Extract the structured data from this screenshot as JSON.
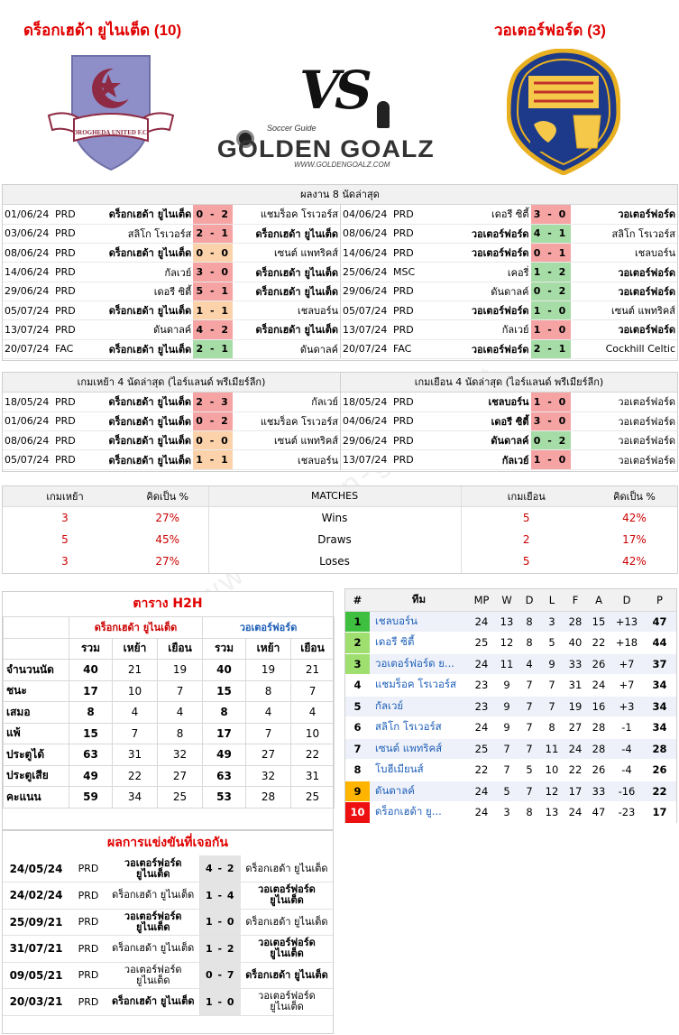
{
  "header": {
    "home_title": "ดร็อกเฮด้า ยูไนเต็ด (10)",
    "away_title": "วอเตอร์ฟอร์ด (3)",
    "vs": "VS",
    "logo_top": "Soccer Guide",
    "logo_main": "GOLDEN GOALZ",
    "logo_url": "WWW.GOLDENGOALZ.COM",
    "home_crest_text": "DROGHEDA UNITED F.C.",
    "watermark": "www.golden-goalz.net"
  },
  "last8": {
    "title": "ผลงาน 8 นัดล่าสุด",
    "home": [
      {
        "date": "01/06/24",
        "comp": "PRD",
        "team": "ดร็อกเฮด้า ยูไนเต็ด",
        "score": "0 - 2",
        "opp": "แชมร็อค โรเวอร์ส",
        "res": "l",
        "hb": true
      },
      {
        "date": "03/06/24",
        "comp": "PRD",
        "team": "สลิโก โรเวอร์ส",
        "score": "2 - 1",
        "opp": "ดร็อกเฮด้า ยูไนเต็ด",
        "res": "l",
        "hb": false
      },
      {
        "date": "08/06/24",
        "comp": "PRD",
        "team": "ดร็อกเฮด้า ยูไนเต็ด",
        "score": "0 - 0",
        "opp": "เซนต์ แพทริคส์",
        "res": "d",
        "hb": true
      },
      {
        "date": "14/06/24",
        "comp": "PRD",
        "team": "กัลเวย์",
        "score": "3 - 0",
        "opp": "ดร็อกเฮด้า ยูไนเต็ด",
        "res": "l",
        "hb": false
      },
      {
        "date": "29/06/24",
        "comp": "PRD",
        "team": "เดอรี ซิตี้",
        "score": "5 - 1",
        "opp": "ดร็อกเฮด้า ยูไนเต็ด",
        "res": "l",
        "hb": false
      },
      {
        "date": "05/07/24",
        "comp": "PRD",
        "team": "ดร็อกเฮด้า ยูไนเต็ด",
        "score": "1 - 1",
        "opp": "เชลบอร์น",
        "res": "d",
        "hb": true
      },
      {
        "date": "13/07/24",
        "comp": "PRD",
        "team": "ดันดาลค์",
        "score": "4 - 2",
        "opp": "ดร็อกเฮด้า ยูไนเต็ด",
        "res": "l",
        "hb": false
      },
      {
        "date": "20/07/24",
        "comp": "FAC",
        "team": "ดร็อกเฮด้า ยูไนเต็ด",
        "score": "2 - 1",
        "opp": "ดันดาลค์",
        "res": "w",
        "hb": true
      }
    ],
    "away": [
      {
        "date": "04/06/24",
        "comp": "PRD",
        "team": "เดอรี ซิตี้",
        "score": "3 - 0",
        "opp": "วอเตอร์ฟอร์ด",
        "res": "l",
        "hb": false
      },
      {
        "date": "08/06/24",
        "comp": "PRD",
        "team": "วอเตอร์ฟอร์ด",
        "score": "4 - 1",
        "opp": "สลิโก โรเวอร์ส",
        "res": "w",
        "hb": true
      },
      {
        "date": "14/06/24",
        "comp": "PRD",
        "team": "วอเตอร์ฟอร์ด",
        "score": "0 - 1",
        "opp": "เชลบอร์น",
        "res": "l",
        "hb": true
      },
      {
        "date": "25/06/24",
        "comp": "MSC",
        "team": "เคอรี่",
        "score": "1 - 2",
        "opp": "วอเตอร์ฟอร์ด",
        "res": "w",
        "hb": false
      },
      {
        "date": "29/06/24",
        "comp": "PRD",
        "team": "ดันดาลค์",
        "score": "0 - 2",
        "opp": "วอเตอร์ฟอร์ด",
        "res": "w",
        "hb": false
      },
      {
        "date": "05/07/24",
        "comp": "PRD",
        "team": "วอเตอร์ฟอร์ด",
        "score": "1 - 0",
        "opp": "เซนต์ แพทริคส์",
        "res": "w",
        "hb": true
      },
      {
        "date": "13/07/24",
        "comp": "PRD",
        "team": "กัลเวย์",
        "score": "1 - 0",
        "opp": "วอเตอร์ฟอร์ด",
        "res": "l",
        "hb": false
      },
      {
        "date": "20/07/24",
        "comp": "FAC",
        "team": "วอเตอร์ฟอร์ด",
        "score": "2 - 1",
        "opp": "Cockhill Celtic",
        "res": "w",
        "hb": true
      }
    ]
  },
  "last4": {
    "home_title": "เกมเหย้า 4 นัดล่าสุด (ไอร์แลนด์ พรีเมียร์ลีก)",
    "away_title": "เกมเยือน 4 นัดล่าสุด (ไอร์แลนด์ พรีเมียร์ลีก)",
    "home": [
      {
        "date": "18/05/24",
        "comp": "PRD",
        "team": "ดร็อกเฮด้า ยูไนเต็ด",
        "score": "2 - 3",
        "opp": "กัลเวย์",
        "res": "l"
      },
      {
        "date": "01/06/24",
        "comp": "PRD",
        "team": "ดร็อกเฮด้า ยูไนเต็ด",
        "score": "0 - 2",
        "opp": "แชมร็อค โรเวอร์ส",
        "res": "l"
      },
      {
        "date": "08/06/24",
        "comp": "PRD",
        "team": "ดร็อกเฮด้า ยูไนเต็ด",
        "score": "0 - 0",
        "opp": "เซนต์ แพทริคส์",
        "res": "d"
      },
      {
        "date": "05/07/24",
        "comp": "PRD",
        "team": "ดร็อกเฮด้า ยูไนเต็ด",
        "score": "1 - 1",
        "opp": "เชลบอร์น",
        "res": "d"
      }
    ],
    "away": [
      {
        "date": "18/05/24",
        "comp": "PRD",
        "team": "เชลบอร์น",
        "score": "1 - 0",
        "opp": "วอเตอร์ฟอร์ด",
        "res": "l"
      },
      {
        "date": "04/06/24",
        "comp": "PRD",
        "team": "เดอรี ซิตี้",
        "score": "3 - 0",
        "opp": "วอเตอร์ฟอร์ด",
        "res": "l"
      },
      {
        "date": "29/06/24",
        "comp": "PRD",
        "team": "ดันดาลค์",
        "score": "0 - 2",
        "opp": "วอเตอร์ฟอร์ด",
        "res": "w"
      },
      {
        "date": "13/07/24",
        "comp": "PRD",
        "team": "กัลเวย์",
        "score": "1 - 0",
        "opp": "วอเตอร์ฟอร์ด",
        "res": "l"
      }
    ]
  },
  "stats": {
    "h_home": "เกมเหย้า",
    "h_pct": "คิดเป็น %",
    "h_matches": "MATCHES",
    "h_away": "เกมเยือน",
    "h_pct2": "คิดเป็น %",
    "rows": [
      {
        "hn": "3",
        "hp": "27%",
        "label": "Wins",
        "an": "5",
        "ap": "42%"
      },
      {
        "hn": "5",
        "hp": "45%",
        "label": "Draws",
        "an": "2",
        "ap": "17%"
      },
      {
        "hn": "3",
        "hp": "27%",
        "label": "Loses",
        "an": "5",
        "ap": "42%"
      }
    ]
  },
  "h2h": {
    "title": "ตาราง H2H",
    "home": "ดร็อกเฮด้า ยูไนเต็ด",
    "away": "วอเตอร์ฟอร์ด",
    "cols": [
      "รวม",
      "เหย้า",
      "เยือน",
      "รวม",
      "เหย้า",
      "เยือน"
    ],
    "rows": [
      {
        "label": "จำนวนนัด",
        "v": [
          "40",
          "21",
          "19",
          "40",
          "19",
          "21"
        ]
      },
      {
        "label": "ชนะ",
        "v": [
          "17",
          "10",
          "7",
          "15",
          "8",
          "7"
        ]
      },
      {
        "label": "เสมอ",
        "v": [
          "8",
          "4",
          "4",
          "8",
          "4",
          "4"
        ]
      },
      {
        "label": "แพ้",
        "v": [
          "15",
          "7",
          "8",
          "17",
          "7",
          "10"
        ]
      },
      {
        "label": "ประตูได้",
        "v": [
          "63",
          "31",
          "32",
          "49",
          "27",
          "22"
        ]
      },
      {
        "label": "ประตูเสีย",
        "v": [
          "49",
          "22",
          "27",
          "63",
          "32",
          "31"
        ]
      },
      {
        "label": "คะแนน",
        "v": [
          "59",
          "34",
          "25",
          "53",
          "28",
          "25"
        ]
      }
    ]
  },
  "past": {
    "title": "ผลการแข่งขันที่เจอกัน",
    "rows": [
      {
        "date": "24/05/24",
        "comp": "PRD",
        "home": "วอเตอร์ฟอร์ด ยูไนเต็ด",
        "hb": true,
        "score": "4 - 2",
        "away": "ดร็อกเฮด้า ยูไนเต็ด",
        "ab": false
      },
      {
        "date": "24/02/24",
        "comp": "PRD",
        "home": "ดร็อกเฮด้า ยูไนเต็ด",
        "hb": false,
        "score": "1 - 4",
        "away": "วอเตอร์ฟอร์ด ยูไนเต็ด",
        "ab": true
      },
      {
        "date": "25/09/21",
        "comp": "PRD",
        "home": "วอเตอร์ฟอร์ด ยูไนเต็ด",
        "hb": true,
        "score": "1 - 0",
        "away": "ดร็อกเฮด้า ยูไนเต็ด",
        "ab": false
      },
      {
        "date": "31/07/21",
        "comp": "PRD",
        "home": "ดร็อกเฮด้า ยูไนเต็ด",
        "hb": false,
        "score": "1 - 2",
        "away": "วอเตอร์ฟอร์ด ยูไนเต็ด",
        "ab": true
      },
      {
        "date": "09/05/21",
        "comp": "PRD",
        "home": "วอเตอร์ฟอร์ด ยูไนเต็ด",
        "hb": false,
        "score": "0 - 7",
        "away": "ดร็อกเฮด้า ยูไนเต็ด",
        "ab": true
      },
      {
        "date": "20/03/21",
        "comp": "PRD",
        "home": "ดร็อกเฮด้า ยูไนเต็ด",
        "hb": true,
        "score": "1 - 0",
        "away": "วอเตอร์ฟอร์ด ยูไนเต็ด",
        "ab": false
      }
    ]
  },
  "league": {
    "cols": [
      "#",
      "ทีม",
      "MP",
      "W",
      "D",
      "L",
      "F",
      "A",
      "D",
      "P"
    ],
    "rows": [
      {
        "pos": "1",
        "team": "เชลบอร์น",
        "mp": "24",
        "w": "13",
        "d": "8",
        "l": "3",
        "f": "28",
        "a": "15",
        "gd": "+13",
        "p": "47"
      },
      {
        "pos": "2",
        "team": "เดอรี ซิตี้",
        "mp": "25",
        "w": "12",
        "d": "8",
        "l": "5",
        "f": "40",
        "a": "22",
        "gd": "+18",
        "p": "44"
      },
      {
        "pos": "3",
        "team": "วอเตอร์ฟอร์ด ย...",
        "mp": "24",
        "w": "11",
        "d": "4",
        "l": "9",
        "f": "33",
        "a": "26",
        "gd": "+7",
        "p": "37"
      },
      {
        "pos": "4",
        "team": "แชมร็อค โรเวอร์ส",
        "mp": "23",
        "w": "9",
        "d": "7",
        "l": "7",
        "f": "31",
        "a": "24",
        "gd": "+7",
        "p": "34"
      },
      {
        "pos": "5",
        "team": "กัลเวย์",
        "mp": "23",
        "w": "9",
        "d": "7",
        "l": "7",
        "f": "19",
        "a": "16",
        "gd": "+3",
        "p": "34"
      },
      {
        "pos": "6",
        "team": "สลิโก โรเวอร์ส",
        "mp": "24",
        "w": "9",
        "d": "7",
        "l": "8",
        "f": "27",
        "a": "28",
        "gd": "-1",
        "p": "34"
      },
      {
        "pos": "7",
        "team": "เซนต์ แพทริคส์",
        "mp": "25",
        "w": "7",
        "d": "7",
        "l": "11",
        "f": "24",
        "a": "28",
        "gd": "-4",
        "p": "28"
      },
      {
        "pos": "8",
        "team": "โบฮีเมียนส์",
        "mp": "22",
        "w": "7",
        "d": "5",
        "l": "10",
        "f": "22",
        "a": "26",
        "gd": "-4",
        "p": "26"
      },
      {
        "pos": "9",
        "team": "ดันดาลค์",
        "mp": "24",
        "w": "5",
        "d": "7",
        "l": "12",
        "f": "17",
        "a": "33",
        "gd": "-16",
        "p": "22"
      },
      {
        "pos": "10",
        "team": "ดร็อกเฮด้า ยู...",
        "mp": "24",
        "w": "3",
        "d": "8",
        "l": "13",
        "f": "24",
        "a": "47",
        "gd": "-23",
        "p": "17"
      }
    ]
  }
}
